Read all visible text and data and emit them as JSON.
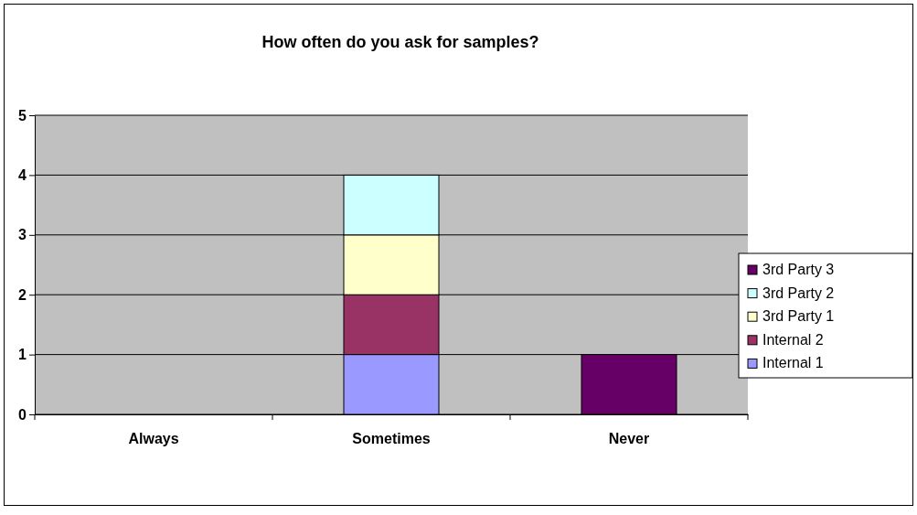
{
  "chart_data": {
    "type": "bar",
    "title": "How often do you ask for samples?",
    "categories": [
      "Always",
      "Sometimes",
      "Never"
    ],
    "stacked": true,
    "series": [
      {
        "name": "Internal 1",
        "color": "#9999ff",
        "values": [
          0,
          1,
          0
        ]
      },
      {
        "name": "Internal 2",
        "color": "#993366",
        "values": [
          0,
          1,
          0
        ]
      },
      {
        "name": "3rd Party 1",
        "color": "#ffffcc",
        "values": [
          0,
          1,
          0
        ]
      },
      {
        "name": "3rd Party 2",
        "color": "#ccffff",
        "values": [
          0,
          1,
          0
        ]
      },
      {
        "name": "3rd Party 3",
        "color": "#660066",
        "values": [
          0,
          0,
          1
        ]
      }
    ],
    "ylim": [
      0,
      5
    ],
    "yticks": [
      0,
      1,
      2,
      3,
      4,
      5
    ],
    "grid": "y",
    "legend": "right"
  }
}
